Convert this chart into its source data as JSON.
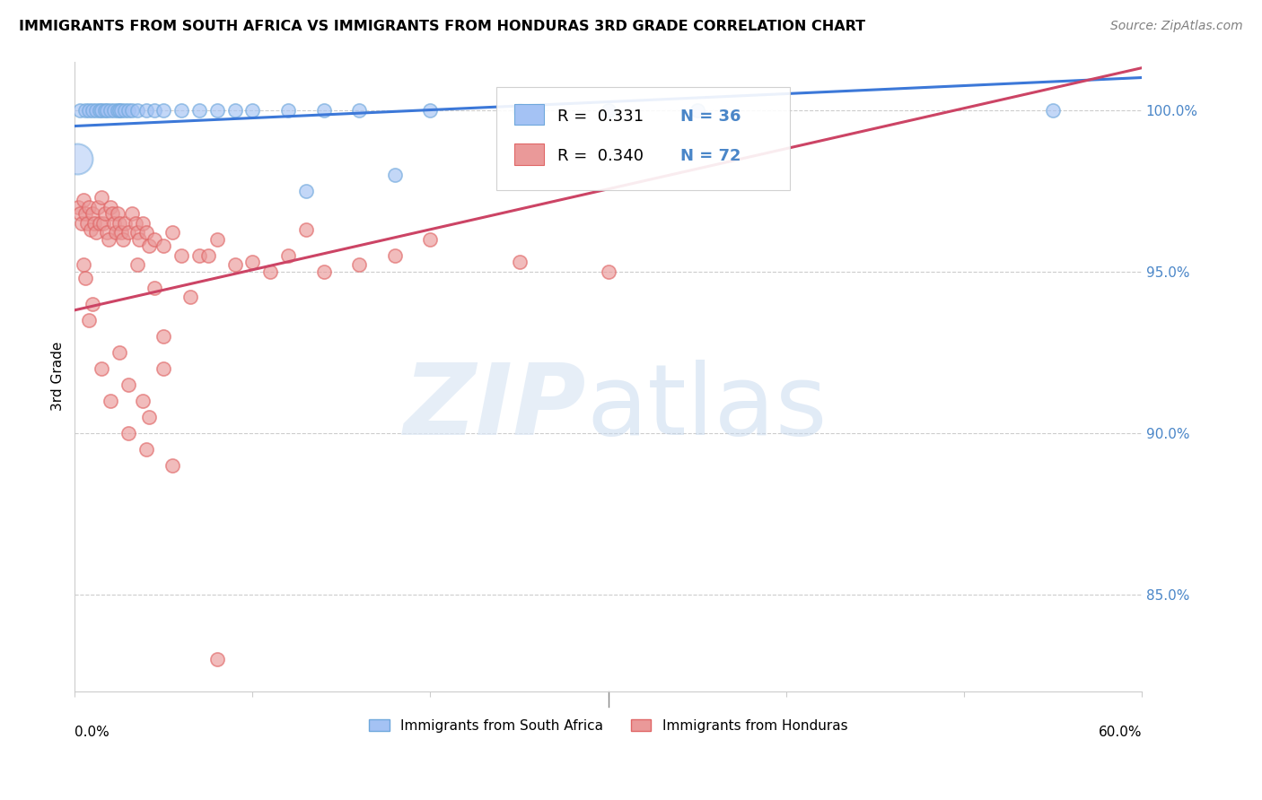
{
  "title": "IMMIGRANTS FROM SOUTH AFRICA VS IMMIGRANTS FROM HONDURAS 3RD GRADE CORRELATION CHART",
  "source": "Source: ZipAtlas.com",
  "ylabel": "3rd Grade",
  "xlim": [
    0.0,
    60.0
  ],
  "ylim": [
    82.0,
    101.5
  ],
  "legend_blue_R": "0.331",
  "legend_blue_N": "36",
  "legend_pink_R": "0.340",
  "legend_pink_N": "72",
  "legend_label_blue": "Immigrants from South Africa",
  "legend_label_pink": "Immigrants from Honduras",
  "blue_color": "#a4c2f4",
  "pink_color": "#ea9999",
  "blue_edge_color": "#6fa8dc",
  "pink_edge_color": "#e06666",
  "blue_line_color": "#3c78d8",
  "pink_line_color": "#cc4465",
  "right_axis_color": "#4a86c8",
  "grid_color": "#cccccc",
  "background_color": "#ffffff",
  "blue_trendline_x": [
    0,
    60
  ],
  "blue_trendline_y": [
    99.5,
    101.0
  ],
  "pink_trendline_x": [
    0,
    60
  ],
  "pink_trendline_y": [
    93.8,
    101.3
  ],
  "blue_scatter_x": [
    0.3,
    0.6,
    0.8,
    1.0,
    1.2,
    1.4,
    1.5,
    1.7,
    1.8,
    2.0,
    2.2,
    2.4,
    2.5,
    2.6,
    2.8,
    3.0,
    3.2,
    3.5,
    4.0,
    4.5,
    5.0,
    6.0,
    7.0,
    8.0,
    9.0,
    10.0,
    12.0,
    14.0,
    16.0,
    20.0,
    25.0,
    30.0,
    35.0,
    55.0,
    13.0,
    18.0
  ],
  "blue_scatter_y": [
    100.0,
    100.0,
    100.0,
    100.0,
    100.0,
    100.0,
    100.0,
    100.0,
    100.0,
    100.0,
    100.0,
    100.0,
    100.0,
    100.0,
    100.0,
    100.0,
    100.0,
    100.0,
    100.0,
    100.0,
    100.0,
    100.0,
    100.0,
    100.0,
    100.0,
    100.0,
    100.0,
    100.0,
    100.0,
    100.0,
    100.0,
    100.0,
    100.0,
    100.0,
    97.5,
    98.0
  ],
  "blue_big_x": [
    0.15
  ],
  "blue_big_y": [
    98.5
  ],
  "pink_scatter_x": [
    0.2,
    0.3,
    0.4,
    0.5,
    0.6,
    0.7,
    0.8,
    0.9,
    1.0,
    1.1,
    1.2,
    1.3,
    1.4,
    1.5,
    1.6,
    1.7,
    1.8,
    1.9,
    2.0,
    2.1,
    2.2,
    2.3,
    2.4,
    2.5,
    2.6,
    2.7,
    2.8,
    3.0,
    3.2,
    3.4,
    3.5,
    3.6,
    3.8,
    4.0,
    4.2,
    4.5,
    5.0,
    5.5,
    6.0,
    7.0,
    8.0,
    9.0,
    10.0,
    11.0,
    12.0,
    14.0,
    16.0,
    18.0,
    20.0,
    25.0,
    30.0,
    0.5,
    0.6,
    0.8,
    1.0,
    1.5,
    2.0,
    3.0,
    4.0,
    5.5,
    8.0,
    3.5,
    4.5,
    5.0,
    6.5,
    7.5,
    2.5,
    3.0,
    3.8,
    4.2,
    5.0,
    13.0
  ],
  "pink_scatter_y": [
    97.0,
    96.8,
    96.5,
    97.2,
    96.8,
    96.5,
    97.0,
    96.3,
    96.8,
    96.5,
    96.2,
    97.0,
    96.5,
    97.3,
    96.5,
    96.8,
    96.2,
    96.0,
    97.0,
    96.8,
    96.5,
    96.2,
    96.8,
    96.5,
    96.2,
    96.0,
    96.5,
    96.2,
    96.8,
    96.5,
    96.2,
    96.0,
    96.5,
    96.2,
    95.8,
    96.0,
    95.8,
    96.2,
    95.5,
    95.5,
    96.0,
    95.2,
    95.3,
    95.0,
    95.5,
    95.0,
    95.2,
    95.5,
    96.0,
    95.3,
    95.0,
    95.2,
    94.8,
    93.5,
    94.0,
    92.0,
    91.0,
    90.0,
    89.5,
    89.0,
    83.0,
    95.2,
    94.5,
    93.0,
    94.2,
    95.5,
    92.5,
    91.5,
    91.0,
    90.5,
    92.0,
    96.3
  ]
}
